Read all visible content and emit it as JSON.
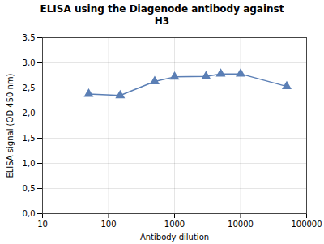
{
  "chart_data": {
    "type": "line",
    "title": "ELISA using the Diagenode antibody against\nH3",
    "xlabel": "Antibody dilution",
    "ylabel": "ELISA signal (OD 450 nm)",
    "x": [
      50,
      150,
      500,
      1000,
      3000,
      5000,
      10000,
      50000
    ],
    "values": [
      2.38,
      2.35,
      2.63,
      2.72,
      2.73,
      2.78,
      2.78,
      2.53
    ],
    "color": "#5b7fb5",
    "marker": "triangle",
    "log": "x",
    "grid": true,
    "xlim": [
      10,
      100000
    ],
    "xticks": [
      10,
      100,
      1000,
      10000,
      100000
    ],
    "ylim": [
      0.0,
      3.5
    ],
    "yticks": [
      {
        "value": 0.0,
        "label": "0,0"
      },
      {
        "value": 0.5,
        "label": "0,5"
      },
      {
        "value": 1.0,
        "label": "1,0"
      },
      {
        "value": 1.5,
        "label": "1,5"
      },
      {
        "value": 2.0,
        "label": "2,0"
      },
      {
        "value": 2.5,
        "label": "2,5"
      },
      {
        "value": 3.0,
        "label": "3,0"
      },
      {
        "value": 3.5,
        "label": "3,5"
      }
    ]
  }
}
